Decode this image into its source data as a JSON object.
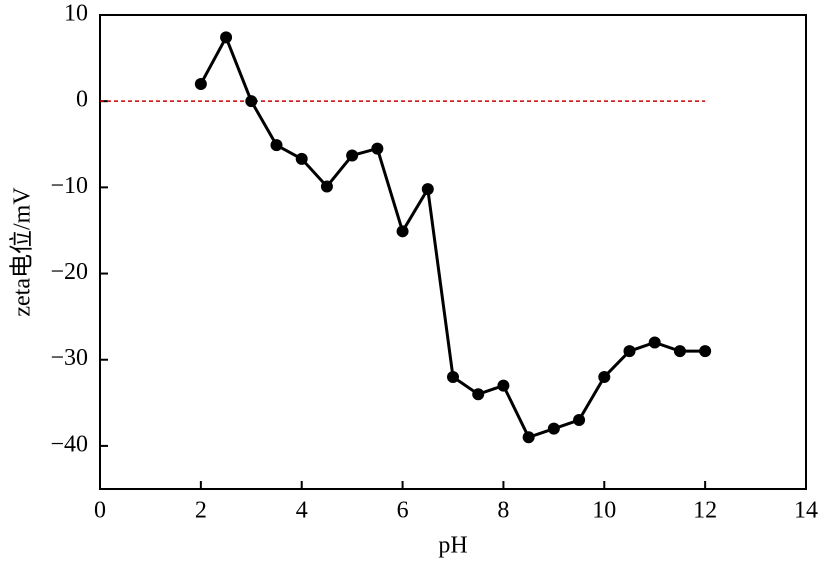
{
  "chart_data": {
    "type": "line",
    "x_label": "pH",
    "y_label": "zeta电位/mV",
    "x": [
      2,
      2.5,
      3,
      3.5,
      4,
      4.5,
      5,
      5.5,
      6,
      6.5,
      7,
      7.5,
      8,
      8.5,
      9,
      9.5,
      10,
      10.5,
      11,
      11.5,
      12
    ],
    "series": [
      {
        "color": "#000000",
        "values": [
          2,
          7.4,
          0,
          -5.1,
          -6.7,
          -9.9,
          -6.3,
          -5.5,
          -15.1,
          -10.2,
          -32,
          -34,
          -33,
          -39,
          -38,
          -37,
          -32,
          -29,
          -28,
          -29,
          -29
        ]
      }
    ],
    "xlim": [
      0,
      14
    ],
    "xticks": [
      0,
      2,
      4,
      6,
      8,
      10,
      12,
      14
    ],
    "ylim": [
      -45,
      10
    ],
    "yticks": [
      {
        "value": -40,
        "label": "−40"
      },
      {
        "value": -30,
        "label": "−30"
      },
      {
        "value": -20,
        "label": "−20"
      },
      {
        "value": -10,
        "label": "−10"
      },
      0,
      10
    ],
    "reference_line": {
      "y": 0,
      "x": [
        0,
        12
      ],
      "color": "#cc0000"
    },
    "grid": false
  }
}
